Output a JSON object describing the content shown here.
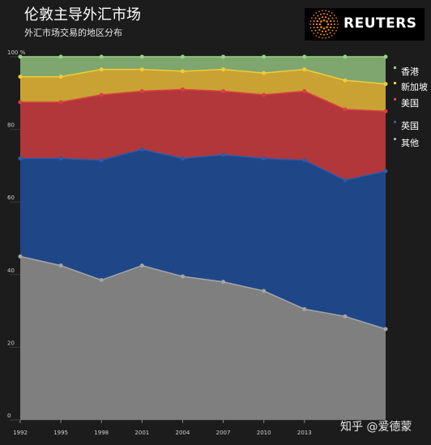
{
  "title": "伦敦主导外汇市场",
  "subtitle": "外汇市场交易的地区分布",
  "logo": {
    "text": "REUTERS"
  },
  "watermark": "知乎 @爱德蒙",
  "colors": {
    "background": "#1c1c1c",
    "other": "#7f7f7f",
    "uk": "#1f4787",
    "us": "#b2373a",
    "singapore": "#c9a233",
    "hongkong": "#7ea66e"
  },
  "chart_data": {
    "type": "area",
    "stacked": true,
    "x": [
      "1992",
      "1995",
      "1998",
      "2001",
      "2004",
      "2007",
      "2010",
      "2013",
      "2016",
      "2019"
    ],
    "xticks": [
      "1992",
      "1995",
      "1998",
      "2001",
      "2004",
      "2007",
      "2010",
      "2013",
      "2016",
      "2019"
    ],
    "xtick_labels": [
      "1992",
      "1995",
      "1998",
      "2001",
      "2004",
      "2007",
      "2010",
      "2013",
      "",
      ""
    ],
    "ylim": [
      0,
      100
    ],
    "yticks": [
      0,
      20,
      40,
      60,
      80,
      100
    ],
    "ytick_labels": [
      "0",
      "20",
      "40",
      "60",
      "80",
      "100 %"
    ],
    "series": [
      {
        "name": "其他",
        "color": "#7f7f7f",
        "line_color": "#a6a6a6",
        "values": [
          45,
          42.5,
          38.5,
          42.5,
          39.5,
          38,
          35.5,
          30.5,
          28.5,
          25
        ]
      },
      {
        "name": "英国",
        "color": "#1f4787",
        "line_color": "#2e5aa8",
        "values": [
          27,
          29.5,
          33,
          32,
          32.5,
          35,
          36.5,
          41,
          37.5,
          43.5
        ]
      },
      {
        "name": "美国",
        "color": "#b2373a",
        "line_color": "#d84040",
        "values": [
          15.5,
          15.5,
          18,
          16,
          19,
          17.5,
          17.5,
          19,
          19.5,
          16.5
        ]
      },
      {
        "name": "新加坡",
        "color": "#c9a233",
        "line_color": "#f0cc3a",
        "values": [
          7,
          7,
          7,
          6,
          5,
          6,
          6,
          6,
          8,
          7.5
        ]
      },
      {
        "name": "香港",
        "color": "#7ea66e",
        "line_color": "#9dcf88",
        "values": [
          5.5,
          5.5,
          3.5,
          3.5,
          4,
          3.5,
          4.5,
          3.5,
          6.5,
          7.5
        ]
      }
    ],
    "legend_order": [
      "香港",
      "新加坡",
      "美国",
      "英国",
      "其他"
    ],
    "legend_position": "right",
    "grid": true
  }
}
